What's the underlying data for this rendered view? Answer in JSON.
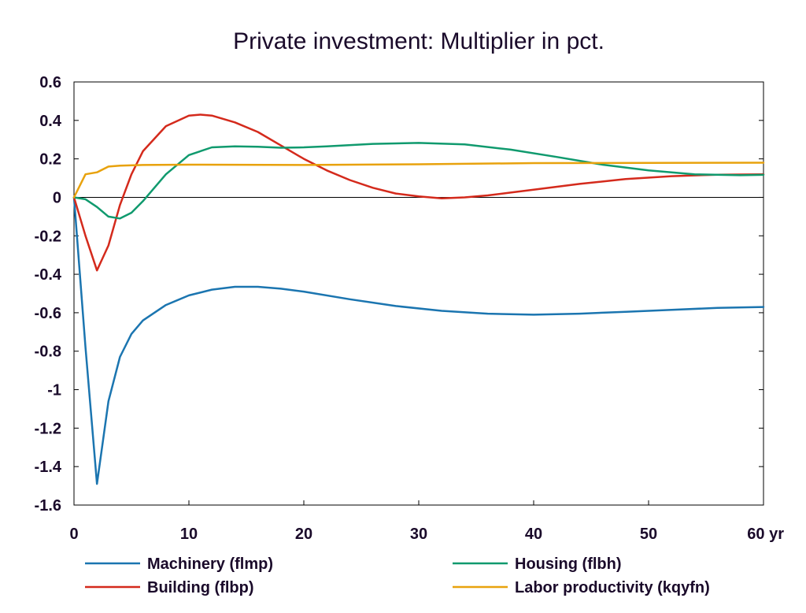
{
  "chart_data": {
    "type": "line",
    "title": "Private investment: Multiplier in pct.",
    "xlabel": "",
    "ylabel": "",
    "xlim": [
      0,
      60
    ],
    "ylim": [
      -1.6,
      0.6
    ],
    "x_ticks": [
      0,
      10,
      20,
      30,
      40,
      50,
      60
    ],
    "x_tick_labels": [
      "0",
      "10",
      "20",
      "30",
      "40",
      "50",
      "60 yr"
    ],
    "y_ticks": [
      0.6,
      0.4,
      0.2,
      0,
      -0.2,
      -0.4,
      -0.6,
      -0.8,
      -1,
      -1.2,
      -1.4,
      -1.6
    ],
    "y_tick_labels": [
      "0.6",
      "0.4",
      "0.2",
      "0",
      "-0.2",
      "-0.4",
      "-0.6",
      "-0.8",
      "-1",
      "-1.2",
      "-1.4",
      "-1.6"
    ],
    "grid": false,
    "zero_line": true,
    "legend_position": "bottom",
    "series": [
      {
        "name": "Machinery (flmp)",
        "color": "#1b75b0",
        "points": [
          [
            0,
            0
          ],
          [
            1,
            -0.78
          ],
          [
            2,
            -1.49
          ],
          [
            3,
            -1.06
          ],
          [
            4,
            -0.83
          ],
          [
            5,
            -0.71
          ],
          [
            6,
            -0.64
          ],
          [
            8,
            -0.56
          ],
          [
            10,
            -0.51
          ],
          [
            12,
            -0.48
          ],
          [
            14,
            -0.465
          ],
          [
            16,
            -0.465
          ],
          [
            18,
            -0.475
          ],
          [
            20,
            -0.49
          ],
          [
            24,
            -0.53
          ],
          [
            28,
            -0.565
          ],
          [
            32,
            -0.59
          ],
          [
            36,
            -0.605
          ],
          [
            40,
            -0.61
          ],
          [
            44,
            -0.605
          ],
          [
            48,
            -0.595
          ],
          [
            52,
            -0.585
          ],
          [
            56,
            -0.575
          ],
          [
            60,
            -0.57
          ]
        ]
      },
      {
        "name": "Building (flbp)",
        "color": "#d42a1c",
        "points": [
          [
            0,
            0
          ],
          [
            1,
            -0.2
          ],
          [
            2,
            -0.38
          ],
          [
            3,
            -0.25
          ],
          [
            4,
            -0.04
          ],
          [
            5,
            0.12
          ],
          [
            6,
            0.24
          ],
          [
            8,
            0.37
          ],
          [
            10,
            0.425
          ],
          [
            11,
            0.43
          ],
          [
            12,
            0.425
          ],
          [
            14,
            0.39
          ],
          [
            16,
            0.34
          ],
          [
            18,
            0.27
          ],
          [
            20,
            0.2
          ],
          [
            22,
            0.14
          ],
          [
            24,
            0.09
          ],
          [
            26,
            0.05
          ],
          [
            28,
            0.02
          ],
          [
            30,
            0.005
          ],
          [
            32,
            -0.005
          ],
          [
            34,
            0.0
          ],
          [
            36,
            0.01
          ],
          [
            38,
            0.025
          ],
          [
            40,
            0.04
          ],
          [
            44,
            0.07
          ],
          [
            48,
            0.095
          ],
          [
            52,
            0.11
          ],
          [
            56,
            0.118
          ],
          [
            60,
            0.12
          ]
        ]
      },
      {
        "name": "Housing (flbh)",
        "color": "#109a6e",
        "points": [
          [
            0,
            0
          ],
          [
            1,
            -0.01
          ],
          [
            2,
            -0.05
          ],
          [
            3,
            -0.1
          ],
          [
            4,
            -0.11
          ],
          [
            5,
            -0.08
          ],
          [
            6,
            -0.02
          ],
          [
            8,
            0.12
          ],
          [
            10,
            0.22
          ],
          [
            12,
            0.26
          ],
          [
            14,
            0.265
          ],
          [
            16,
            0.263
          ],
          [
            18,
            0.258
          ],
          [
            20,
            0.26
          ],
          [
            22,
            0.265
          ],
          [
            26,
            0.278
          ],
          [
            30,
            0.283
          ],
          [
            34,
            0.275
          ],
          [
            38,
            0.248
          ],
          [
            42,
            0.21
          ],
          [
            46,
            0.17
          ],
          [
            50,
            0.14
          ],
          [
            54,
            0.12
          ],
          [
            58,
            0.115
          ],
          [
            60,
            0.117
          ]
        ]
      },
      {
        "name": "Labor productivity (kqyfn)",
        "color": "#e8a20d",
        "points": [
          [
            0,
            0
          ],
          [
            1,
            0.12
          ],
          [
            2,
            0.13
          ],
          [
            3,
            0.16
          ],
          [
            4,
            0.165
          ],
          [
            6,
            0.168
          ],
          [
            10,
            0.17
          ],
          [
            20,
            0.168
          ],
          [
            30,
            0.172
          ],
          [
            40,
            0.178
          ],
          [
            50,
            0.179
          ],
          [
            60,
            0.18
          ]
        ]
      }
    ]
  }
}
